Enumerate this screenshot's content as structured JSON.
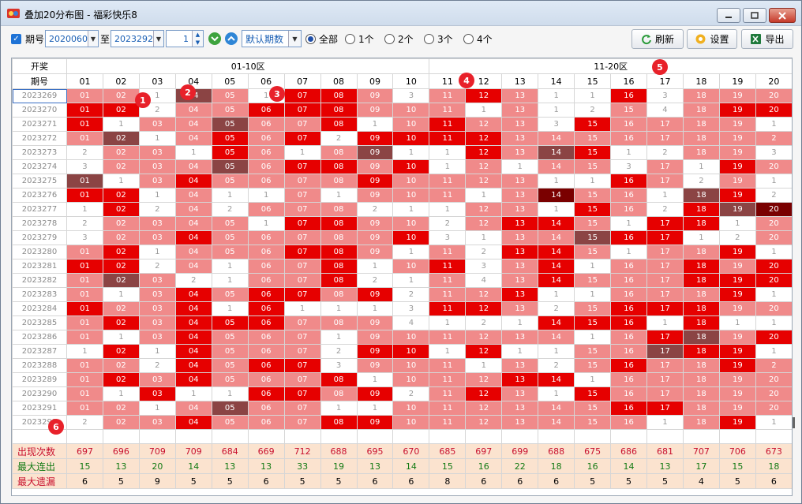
{
  "window": {
    "title": "叠加20分布图 - 福彩快乐8"
  },
  "toolbar": {
    "period_label": "期号",
    "from_value": "2020060",
    "to_label": "至",
    "to_value": "2023292",
    "step_value": "1",
    "preset_label": "默认期数",
    "radios": [
      {
        "label": "全部",
        "checked": true
      },
      {
        "label": "1个",
        "checked": false
      },
      {
        "label": "2个",
        "checked": false
      },
      {
        "label": "3个",
        "checked": false
      },
      {
        "label": "4个",
        "checked": false
      }
    ],
    "refresh_label": "刷新",
    "settings_label": "设置",
    "export_label": "导出"
  },
  "grid": {
    "header_draw": "开奖",
    "header_period": "期号",
    "zone1": "01-10区",
    "zone2": "11-20区",
    "columns": [
      "01",
      "02",
      "03",
      "04",
      "05",
      "06",
      "07",
      "08",
      "09",
      "10",
      "11",
      "12",
      "13",
      "14",
      "15",
      "16",
      "17",
      "18",
      "19",
      "20"
    ],
    "rows": [
      {
        "p": "2023269",
        "v": [
          "1:01",
          "1:02",
          "0:1",
          "4:04",
          "1:05",
          "0:1",
          "3:07",
          "3:08",
          "1:09",
          "0:3",
          "1:11",
          "3:12",
          "1:13",
          "0:1",
          "0:1",
          "3:16",
          "0:3",
          "1:18",
          "1:19",
          "1:20"
        ]
      },
      {
        "p": "2023270",
        "v": [
          "3:01",
          "3:02",
          "0:2",
          "1:04",
          "1:05",
          "3:06",
          "3:07",
          "3:08",
          "1:09",
          "1:10",
          "1:11",
          "0:1",
          "1:13",
          "0:1",
          "0:2",
          "1:15",
          "0:4",
          "1:18",
          "3:19",
          "3:20"
        ]
      },
      {
        "p": "2023271",
        "v": [
          "3:01",
          "0:1",
          "1:03",
          "1:04",
          "4:05",
          "1:06",
          "1:07",
          "3:08",
          "0:1",
          "1:10",
          "3:11",
          "1:12",
          "1:13",
          "0:3",
          "3:15",
          "1:16",
          "1:17",
          "1:18",
          "1:19",
          "0:1"
        ]
      },
      {
        "p": "2023272",
        "v": [
          "1:01",
          "4:02",
          "0:1",
          "1:04",
          "3:05",
          "1:06",
          "3:07",
          "0:2",
          "3:09",
          "3:10",
          "3:11",
          "3:12",
          "1:13",
          "1:14",
          "1:15",
          "1:16",
          "1:17",
          "1:18",
          "1:19",
          "1:2"
        ]
      },
      {
        "p": "2023273",
        "v": [
          "0:2",
          "1:02",
          "1:03",
          "0:1",
          "3:05",
          "1:06",
          "0:1",
          "1:08",
          "4:09",
          "0:1",
          "0:1",
          "3:12",
          "1:13",
          "4:14",
          "3:15",
          "0:1",
          "0:2",
          "1:18",
          "1:19",
          "0:3"
        ]
      },
      {
        "p": "2023274",
        "v": [
          "0:3",
          "1:02",
          "1:03",
          "1:04",
          "4:05",
          "1:06",
          "3:07",
          "3:08",
          "1:09",
          "3:10",
          "0:1",
          "1:12",
          "0:1",
          "1:14",
          "1:15",
          "0:3",
          "1:17",
          "0:1",
          "3:19",
          "1:20"
        ]
      },
      {
        "p": "2023275",
        "v": [
          "4:01",
          "0:1",
          "1:03",
          "3:04",
          "1:05",
          "1:06",
          "1:07",
          "1:08",
          "3:09",
          "1:10",
          "1:11",
          "1:12",
          "1:13",
          "0:1",
          "0:1",
          "3:16",
          "1:17",
          "0:2",
          "1:19",
          "0:1"
        ]
      },
      {
        "p": "2023276",
        "v": [
          "3:01",
          "3:02",
          "0:1",
          "1:04",
          "0:1",
          "0:1",
          "1:07",
          "0:1",
          "1:09",
          "1:10",
          "1:11",
          "0:1",
          "1:13",
          "5:14",
          "1:15",
          "1:16",
          "0:1",
          "4:18",
          "3:19",
          "0:2"
        ]
      },
      {
        "p": "2023277",
        "v": [
          "0:1",
          "3:02",
          "0:2",
          "1:04",
          "0:2",
          "1:06",
          "1:07",
          "1:08",
          "0:2",
          "0:1",
          "0:1",
          "1:12",
          "1:13",
          "0:1",
          "3:15",
          "1:16",
          "0:2",
          "3:18",
          "4:19",
          "5:20"
        ]
      },
      {
        "p": "2023278",
        "v": [
          "0:2",
          "1:02",
          "1:03",
          "1:04",
          "1:05",
          "0:1",
          "3:07",
          "3:08",
          "1:09",
          "1:10",
          "0:2",
          "1:12",
          "3:13",
          "3:14",
          "1:15",
          "0:1",
          "3:17",
          "3:18",
          "0:1",
          "1:20"
        ]
      },
      {
        "p": "2023279",
        "v": [
          "0:3",
          "1:02",
          "1:03",
          "3:04",
          "1:05",
          "1:06",
          "1:07",
          "1:08",
          "1:09",
          "3:10",
          "0:3",
          "0:1",
          "1:13",
          "1:14",
          "4:15",
          "3:16",
          "3:17",
          "0:1",
          "0:2",
          "1:20"
        ]
      },
      {
        "p": "2023280",
        "v": [
          "1:01",
          "3:02",
          "0:1",
          "1:04",
          "1:05",
          "1:06",
          "3:07",
          "3:08",
          "1:09",
          "0:1",
          "1:11",
          "0:2",
          "3:13",
          "3:14",
          "1:15",
          "0:1",
          "1:17",
          "1:18",
          "3:19",
          "0:1"
        ]
      },
      {
        "p": "2023281",
        "v": [
          "3:01",
          "3:02",
          "0:2",
          "1:04",
          "0:1",
          "1:06",
          "1:07",
          "3:08",
          "0:1",
          "1:10",
          "3:11",
          "0:3",
          "1:13",
          "3:14",
          "0:1",
          "1:16",
          "1:17",
          "3:18",
          "1:19",
          "3:20"
        ]
      },
      {
        "p": "2023282",
        "v": [
          "1:01",
          "4:02",
          "1:03",
          "0:2",
          "0:1",
          "1:06",
          "1:07",
          "3:08",
          "0:2",
          "0:1",
          "1:11",
          "0:4",
          "1:13",
          "3:14",
          "1:15",
          "1:16",
          "1:17",
          "3:18",
          "3:19",
          "3:20"
        ]
      },
      {
        "p": "2023283",
        "v": [
          "1:01",
          "0:1",
          "1:03",
          "3:04",
          "1:05",
          "3:06",
          "3:07",
          "1:08",
          "3:09",
          "0:2",
          "1:11",
          "1:12",
          "3:13",
          "0:1",
          "0:1",
          "1:16",
          "1:17",
          "1:18",
          "3:19",
          "0:1"
        ]
      },
      {
        "p": "2023284",
        "v": [
          "3:01",
          "1:02",
          "1:03",
          "3:04",
          "0:1",
          "3:06",
          "0:1",
          "0:1",
          "0:1",
          "0:3",
          "3:11",
          "3:12",
          "1:13",
          "0:2",
          "1:15",
          "3:16",
          "3:17",
          "3:18",
          "1:19",
          "1:20"
        ]
      },
      {
        "p": "2023285",
        "v": [
          "1:01",
          "3:02",
          "1:03",
          "3:04",
          "3:05",
          "3:06",
          "1:07",
          "1:08",
          "1:09",
          "0:4",
          "0:1",
          "0:2",
          "0:1",
          "3:14",
          "3:15",
          "3:16",
          "0:1",
          "3:18",
          "0:1",
          "0:1"
        ]
      },
      {
        "p": "2023286",
        "v": [
          "1:01",
          "0:1",
          "1:03",
          "3:04",
          "1:05",
          "1:06",
          "1:07",
          "0:1",
          "1:09",
          "1:10",
          "1:11",
          "1:12",
          "1:13",
          "1:14",
          "0:1",
          "1:16",
          "3:17",
          "4:18",
          "1:19",
          "3:20"
        ]
      },
      {
        "p": "2023287",
        "v": [
          "0:1",
          "3:02",
          "0:1",
          "3:04",
          "1:05",
          "1:06",
          "1:07",
          "0:2",
          "3:09",
          "3:10",
          "0:1",
          "3:12",
          "0:1",
          "0:1",
          "1:15",
          "1:16",
          "4:17",
          "3:18",
          "3:19",
          "0:1"
        ]
      },
      {
        "p": "2023288",
        "v": [
          "1:01",
          "1:02",
          "0:2",
          "3:04",
          "1:05",
          "3:06",
          "3:07",
          "0:3",
          "1:09",
          "1:10",
          "1:11",
          "0:1",
          "1:13",
          "0:2",
          "1:15",
          "3:16",
          "1:17",
          "1:18",
          "3:19",
          "1:2"
        ]
      },
      {
        "p": "2023289",
        "v": [
          "1:01",
          "3:02",
          "1:03",
          "3:04",
          "1:05",
          "1:06",
          "1:07",
          "3:08",
          "0:1",
          "1:10",
          "1:11",
          "1:12",
          "3:13",
          "3:14",
          "0:1",
          "1:16",
          "1:17",
          "1:18",
          "1:19",
          "1:20"
        ]
      },
      {
        "p": "2023290",
        "v": [
          "1:01",
          "0:1",
          "3:03",
          "0:1",
          "0:1",
          "3:06",
          "3:07",
          "1:08",
          "3:09",
          "0:2",
          "1:11",
          "3:12",
          "1:13",
          "0:1",
          "3:15",
          "1:16",
          "1:17",
          "1:18",
          "1:19",
          "1:20"
        ]
      },
      {
        "p": "2023291",
        "v": [
          "1:01",
          "1:02",
          "0:1",
          "1:04",
          "4:05",
          "1:06",
          "1:07",
          "0:1",
          "0:1",
          "1:10",
          "1:11",
          "1:12",
          "1:13",
          "1:14",
          "1:15",
          "3:16",
          "3:17",
          "1:18",
          "1:19",
          "1:20"
        ]
      },
      {
        "p": "2023292",
        "v": [
          "0:2",
          "1:02",
          "1:03",
          "3:04",
          "1:05",
          "1:06",
          "1:07",
          "3:08",
          "3:09",
          "1:10",
          "1:11",
          "1:12",
          "1:13",
          "1:14",
          "1:15",
          "1:16",
          "0:1",
          "1:18",
          "3:19",
          "0:1"
        ]
      }
    ],
    "stats": [
      {
        "label": "出现次数",
        "values": [
          "697",
          "696",
          "709",
          "709",
          "684",
          "669",
          "712",
          "688",
          "695",
          "670",
          "685",
          "697",
          "699",
          "688",
          "675",
          "686",
          "681",
          "707",
          "706",
          "673"
        ]
      },
      {
        "label": "最大连出",
        "values": [
          "15",
          "13",
          "20",
          "14",
          "13",
          "13",
          "33",
          "19",
          "13",
          "14",
          "15",
          "16",
          "22",
          "18",
          "16",
          "14",
          "13",
          "17",
          "15",
          "18"
        ]
      },
      {
        "label": "最大遗漏",
        "values": [
          "6",
          "5",
          "9",
          "5",
          "5",
          "6",
          "5",
          "5",
          "6",
          "6",
          "8",
          "6",
          "6",
          "6",
          "5",
          "5",
          "5",
          "4",
          "5",
          "6"
        ]
      }
    ]
  },
  "markers": [
    "1",
    "2",
    "3",
    "4",
    "5",
    "6"
  ],
  "colors": {
    "accent": "#1f73d6",
    "hot": "#e60000",
    "mid": "#f08a8a",
    "light": "#f5a3a3",
    "dark": "#8b4444",
    "marker": "#e8212a"
  }
}
